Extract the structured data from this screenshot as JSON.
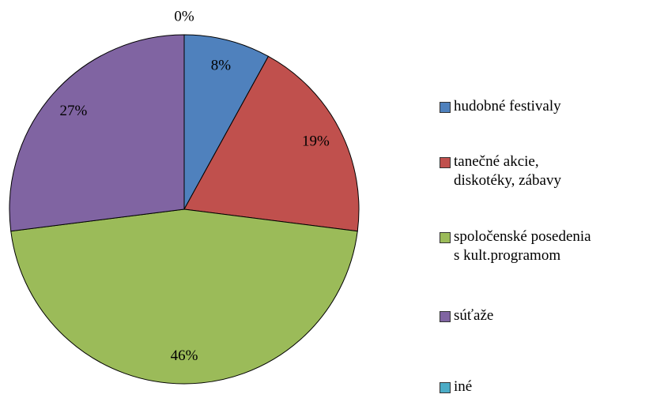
{
  "chart_data": {
    "type": "pie",
    "categories": [
      "hudobné festivaly",
      "tanečné akcie,\ndiskotéky, zábavy",
      "spoločenské posedenia\ns kult.programom",
      "súťaže",
      "iné"
    ],
    "values": [
      8,
      19,
      46,
      27,
      0
    ],
    "value_labels": [
      "8%",
      "19%",
      "46%",
      "27%",
      "0%"
    ],
    "colors": [
      "#4f81bd",
      "#c0504d",
      "#9bbb59",
      "#8064a2",
      "#4bacc6"
    ],
    "legend": "right"
  }
}
